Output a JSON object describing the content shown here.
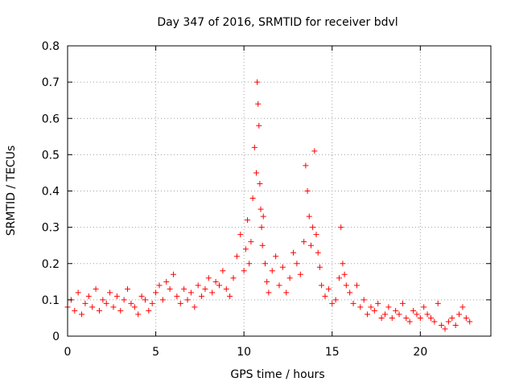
{
  "chart_data": {
    "type": "scatter",
    "title": "Day 347 of 2016, SRMTID for receiver bdvl",
    "xlabel": "GPS time / hours",
    "ylabel": "SRMTID / TECUs",
    "xlim": [
      0,
      24
    ],
    "ylim": [
      0,
      0.8
    ],
    "xticks": [
      0,
      5,
      10,
      15,
      20
    ],
    "xtick_labels": [
      "0",
      "5",
      "10",
      "15",
      "20"
    ],
    "yticks": [
      0,
      0.1,
      0.2,
      0.3,
      0.4,
      0.5,
      0.6,
      0.7,
      0.8
    ],
    "ytick_labels": [
      "0",
      "0.1",
      "0.2",
      "0.3",
      "0.4",
      "0.5",
      "0.6",
      "0.7",
      "0.8"
    ],
    "grid": true,
    "marker": "plus",
    "color": "#ff0000",
    "series": [
      {
        "name": "SRMTID",
        "x": [
          0.0,
          0.2,
          0.4,
          0.6,
          0.8,
          1.0,
          1.2,
          1.4,
          1.6,
          1.8,
          2.0,
          2.2,
          2.4,
          2.6,
          2.8,
          3.0,
          3.2,
          3.4,
          3.6,
          3.8,
          4.0,
          4.2,
          4.4,
          4.6,
          4.8,
          5.0,
          5.2,
          5.4,
          5.6,
          5.8,
          6.0,
          6.2,
          6.4,
          6.6,
          6.8,
          7.0,
          7.2,
          7.4,
          7.6,
          7.8,
          8.0,
          8.2,
          8.4,
          8.6,
          8.8,
          9.0,
          9.2,
          9.4,
          9.6,
          9.8,
          10.0,
          10.1,
          10.2,
          10.3,
          10.4,
          10.5,
          10.6,
          10.7,
          10.75,
          10.8,
          10.85,
          10.9,
          10.95,
          11.0,
          11.05,
          11.1,
          11.2,
          11.3,
          11.4,
          11.6,
          11.8,
          12.0,
          12.2,
          12.4,
          12.6,
          12.8,
          13.0,
          13.2,
          13.4,
          13.5,
          13.6,
          13.7,
          13.8,
          13.9,
          14.0,
          14.1,
          14.2,
          14.3,
          14.4,
          14.6,
          14.8,
          15.0,
          15.2,
          15.4,
          15.5,
          15.6,
          15.7,
          15.8,
          16.0,
          16.2,
          16.4,
          16.6,
          16.8,
          17.0,
          17.2,
          17.4,
          17.6,
          17.8,
          18.0,
          18.2,
          18.4,
          18.6,
          18.8,
          19.0,
          19.2,
          19.4,
          19.6,
          19.8,
          20.0,
          20.2,
          20.4,
          20.6,
          20.8,
          21.0,
          21.2,
          21.4,
          21.6,
          21.8,
          22.0,
          22.2,
          22.4,
          22.6,
          22.8
        ],
        "y": [
          0.08,
          0.1,
          0.07,
          0.12,
          0.06,
          0.09,
          0.11,
          0.08,
          0.13,
          0.07,
          0.1,
          0.09,
          0.12,
          0.08,
          0.11,
          0.07,
          0.1,
          0.13,
          0.09,
          0.08,
          0.06,
          0.11,
          0.1,
          0.07,
          0.09,
          0.12,
          0.14,
          0.1,
          0.15,
          0.13,
          0.17,
          0.11,
          0.09,
          0.13,
          0.1,
          0.12,
          0.08,
          0.14,
          0.11,
          0.13,
          0.16,
          0.12,
          0.15,
          0.14,
          0.18,
          0.13,
          0.11,
          0.16,
          0.22,
          0.28,
          0.18,
          0.24,
          0.32,
          0.2,
          0.26,
          0.38,
          0.52,
          0.45,
          0.7,
          0.64,
          0.58,
          0.42,
          0.35,
          0.3,
          0.25,
          0.33,
          0.2,
          0.15,
          0.12,
          0.18,
          0.22,
          0.14,
          0.19,
          0.12,
          0.16,
          0.23,
          0.2,
          0.17,
          0.26,
          0.47,
          0.4,
          0.33,
          0.25,
          0.3,
          0.51,
          0.28,
          0.23,
          0.19,
          0.14,
          0.11,
          0.13,
          0.09,
          0.1,
          0.16,
          0.3,
          0.2,
          0.17,
          0.14,
          0.12,
          0.09,
          0.14,
          0.08,
          0.1,
          0.06,
          0.08,
          0.07,
          0.09,
          0.05,
          0.06,
          0.08,
          0.05,
          0.07,
          0.06,
          0.09,
          0.05,
          0.04,
          0.07,
          0.06,
          0.05,
          0.08,
          0.06,
          0.05,
          0.04,
          0.09,
          0.03,
          0.02,
          0.04,
          0.05,
          0.03,
          0.06,
          0.08,
          0.05,
          0.04
        ]
      }
    ]
  }
}
